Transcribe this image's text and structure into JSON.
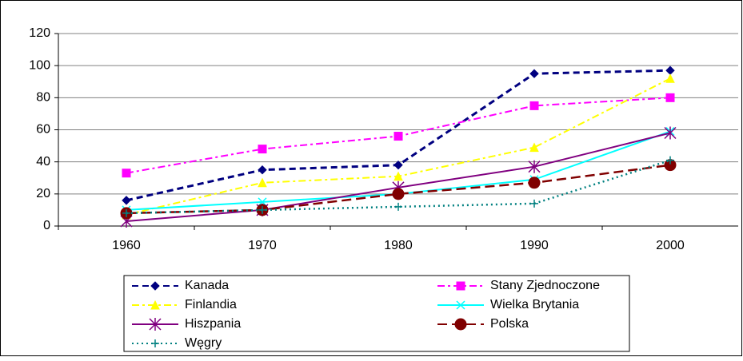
{
  "chart_data": {
    "type": "line",
    "categories": [
      "1960",
      "1970",
      "1980",
      "1990",
      "2000"
    ],
    "series": [
      {
        "name": "Kanada",
        "color": "#000080",
        "dash": "dashed",
        "marker": "diamond",
        "values": [
          16,
          35,
          38,
          95,
          97
        ]
      },
      {
        "name": "Stany Zjednoczone",
        "color": "#ff00ff",
        "dash": "dashdot",
        "marker": "square",
        "values": [
          33,
          48,
          56,
          75,
          80
        ]
      },
      {
        "name": "Finlandia",
        "color": "#ffff00",
        "dash": "dashdot",
        "marker": "triangle",
        "values": [
          7,
          27,
          31,
          49,
          92
        ]
      },
      {
        "name": "Wielka Brytania",
        "color": "#00ffff",
        "dash": "solid",
        "marker": "x",
        "values": [
          10,
          15,
          20,
          29,
          59
        ]
      },
      {
        "name": "Hiszpania",
        "color": "#800080",
        "dash": "solid",
        "marker": "star",
        "values": [
          3,
          10,
          24,
          37,
          58
        ]
      },
      {
        "name": "Polska",
        "color": "#800000",
        "dash": "longdash",
        "marker": "circle",
        "values": [
          8,
          10,
          20,
          27,
          38
        ]
      },
      {
        "name": "Węgry",
        "color": "#008080",
        "dash": "dotted",
        "marker": "plus",
        "values": [
          8,
          10,
          12,
          14,
          41
        ]
      }
    ],
    "ylim": [
      0,
      120
    ],
    "yticks": [
      0,
      20,
      40,
      60,
      80,
      100,
      120
    ],
    "grid": true,
    "legend": "bottom"
  }
}
